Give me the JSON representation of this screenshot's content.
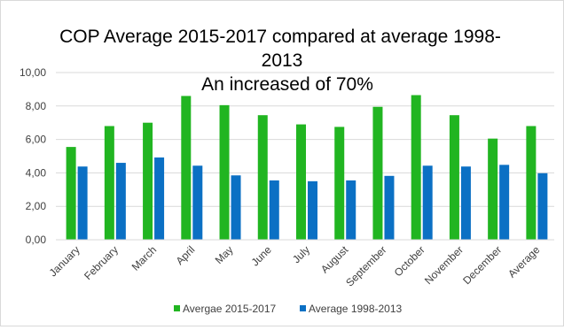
{
  "chart_data": {
    "type": "bar",
    "title_lines": [
      "COP Average 2015-2017 compared at  average 1998-",
      "2013"
    ],
    "annotation": "An increased of 70%",
    "xlabel": "",
    "ylabel": "",
    "categories": [
      "January",
      "February",
      "March",
      "April",
      "May",
      "June",
      "July",
      "August",
      "September",
      "October",
      "November",
      "December",
      "Average"
    ],
    "series": [
      {
        "name": "Avergae 2015-2017",
        "color": "#21b521",
        "values": [
          5.55,
          6.8,
          7.0,
          8.6,
          8.05,
          7.45,
          6.9,
          6.75,
          7.95,
          8.65,
          7.45,
          6.05,
          6.8
        ]
      },
      {
        "name": "Average 1998-2013",
        "color": "#0b70c4",
        "values": [
          4.38,
          4.6,
          4.92,
          4.43,
          3.85,
          3.55,
          3.5,
          3.55,
          3.82,
          4.43,
          4.38,
          4.48,
          3.98
        ]
      }
    ],
    "ylim": [
      0,
      10
    ],
    "yticks": [
      "0,00",
      "2,00",
      "4,00",
      "6,00",
      "8,00",
      "10,00"
    ],
    "ytick_values": [
      0,
      2,
      4,
      6,
      8,
      10
    ],
    "grid": true,
    "legend_position": "bottom"
  }
}
